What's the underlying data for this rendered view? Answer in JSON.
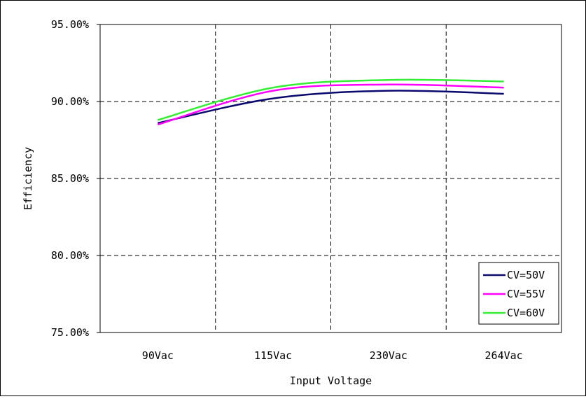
{
  "chart_data": {
    "type": "line",
    "xlabel": "Input Voltage",
    "ylabel": "Efficiency",
    "categories": [
      "90Vac",
      "115Vac",
      "230Vac",
      "264Vac"
    ],
    "ylim": [
      0.75,
      0.95
    ],
    "yticks": [
      0.75,
      0.8,
      0.85,
      0.9,
      0.95
    ],
    "ytick_labels": [
      "75.00%",
      "80.00%",
      "85.00%",
      "90.00%",
      "95.00%"
    ],
    "grid": true,
    "legend_position": "bottom-right",
    "series": [
      {
        "name": "CV=50V",
        "color": "#0a0a6e",
        "values": [
          0.886,
          0.902,
          0.907,
          0.905
        ]
      },
      {
        "name": "CV=55V",
        "color": "#ff00ff",
        "values": [
          0.885,
          0.907,
          0.911,
          0.909
        ]
      },
      {
        "name": "CV=60V",
        "color": "#33ee33",
        "values": [
          0.888,
          0.909,
          0.914,
          0.913
        ]
      }
    ]
  }
}
